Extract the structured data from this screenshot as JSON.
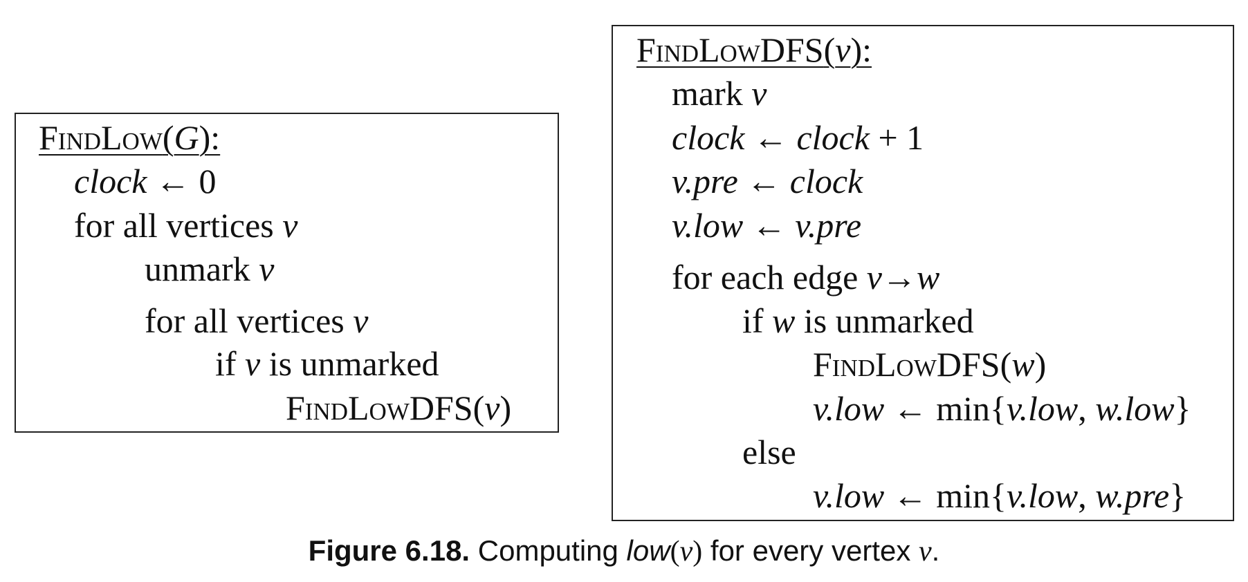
{
  "findlow": {
    "name": "FindLow",
    "param": "G",
    "lines": {
      "l1": {
        "var": "clock",
        "op": " ← ",
        "val": "0"
      },
      "l2": {
        "text": "for all vertices ",
        "var": "v"
      },
      "l3": {
        "text": "unmark ",
        "var": "v"
      },
      "l4": {
        "text": "for all vertices ",
        "var": "v"
      },
      "l5": {
        "pre": "if ",
        "var": "v",
        "post": " is unmarked"
      },
      "l6": {
        "call": "FindLowDFS",
        "arg": "v"
      }
    }
  },
  "findlowdfs": {
    "name": "FindLowDFS",
    "param": "v",
    "lines": {
      "l1": {
        "text": "mark ",
        "var": "v"
      },
      "l2": {
        "lhs": "clock",
        "op": " ← ",
        "rhs": "clock",
        "tail": " + 1"
      },
      "l3": {
        "lhs": "v.pre",
        "op": " ← ",
        "rhs": "clock"
      },
      "l4": {
        "lhs": "v.low",
        "op": " ← ",
        "rhs": "v.pre"
      },
      "l5": {
        "text": "for each edge ",
        "edge": "v→w"
      },
      "l6": {
        "pre": "if ",
        "var": "w",
        "post": " is unmarked"
      },
      "l7": {
        "call": "FindLowDFS",
        "arg": "w"
      },
      "l8": {
        "lhs": "v.low",
        "op": " ← min{",
        "a": "v.low",
        "sep": ", ",
        "b": "w.low",
        "close": "}"
      },
      "l9": {
        "text": "else"
      },
      "l10": {
        "lhs": "v.low",
        "op": " ← min{",
        "a": "v.low",
        "sep": ", ",
        "b": "w.pre",
        "close": "}"
      }
    }
  },
  "caption": {
    "label": "Figure 6.18.",
    "text1": " Computing ",
    "func": "low",
    "arg": "v",
    "text2": " for every vertex ",
    "var": "v",
    "end": "."
  }
}
